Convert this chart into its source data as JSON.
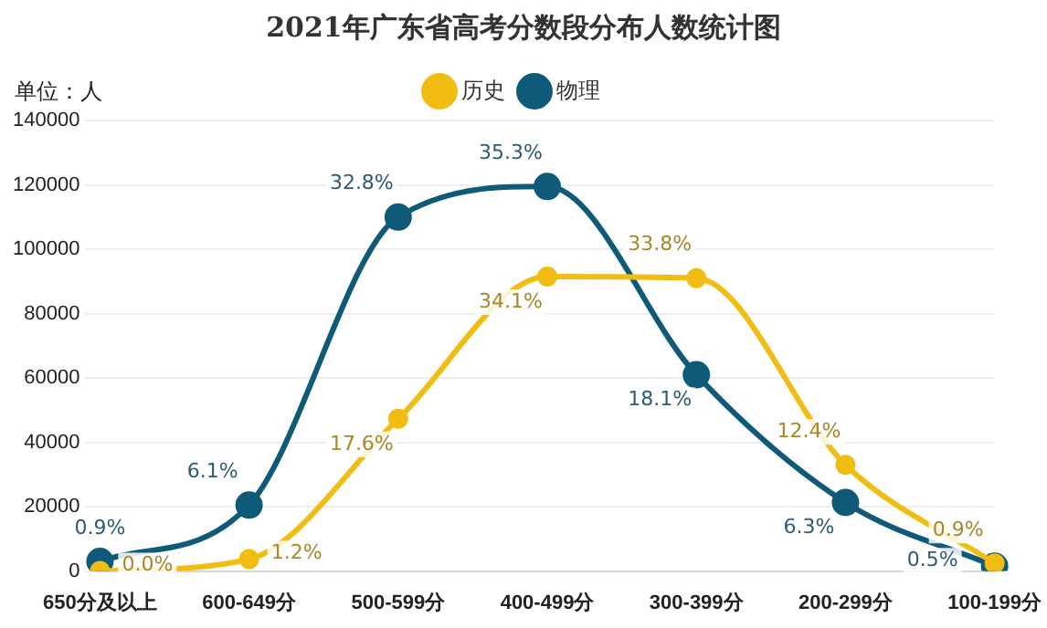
{
  "chart_data": {
    "type": "line",
    "title": "2021年广东省高考分数段分布人数统计图",
    "ylabel": "单位：人",
    "categories": [
      "650分及以上",
      "600-649分",
      "500-599分",
      "400-499分",
      "300-399分",
      "200-299分",
      "100-199分"
    ],
    "series": [
      {
        "name": "历史",
        "color": "#f2bd13",
        "values": [
          0,
          3700,
          47300,
          91500,
          91000,
          33000,
          2400
        ]
      },
      {
        "name": "物理",
        "color": "#0f5a78",
        "values": [
          3000,
          20500,
          110000,
          119500,
          61000,
          21300,
          1500
        ]
      }
    ],
    "annotations": [
      {
        "text": "0.0%",
        "x": "650分及以上",
        "y": 0
      },
      {
        "text": "1.2%",
        "x": "600-649分",
        "y": 3700
      },
      {
        "text": "17.6%",
        "x": "500-599分",
        "y": 47300
      },
      {
        "text": "34.1%",
        "x": "400-499分",
        "y": 91500
      },
      {
        "text": "33.8%",
        "x": "300-399分",
        "y": 91000
      },
      {
        "text": "12.4%",
        "x": "200-299分",
        "y": 33000
      },
      {
        "text": "0.9%",
        "x": "100-199分",
        "y": 2400
      },
      {
        "text": "0.9%",
        "x": "650分及以上",
        "y": 3000
      },
      {
        "text": "6.1%",
        "x": "600-649分",
        "y": 20500
      },
      {
        "text": "32.8%",
        "x": "500-599分",
        "y": 110000
      },
      {
        "text": "35.3%",
        "x": "400-499分",
        "y": 119500
      },
      {
        "text": "18.1%",
        "x": "300-399分",
        "y": 61000
      },
      {
        "text": "6.3%",
        "x": "200-299分",
        "y": 21300
      },
      {
        "text": "0.5%",
        "x": "100-199分",
        "y": 1500
      }
    ],
    "ylim": [
      0,
      140000
    ],
    "yticks": [
      0,
      20000,
      40000,
      60000,
      80000,
      100000,
      120000,
      140000
    ],
    "grid": "y",
    "legend": "top",
    "marker": "circle",
    "line_style": "solid"
  }
}
